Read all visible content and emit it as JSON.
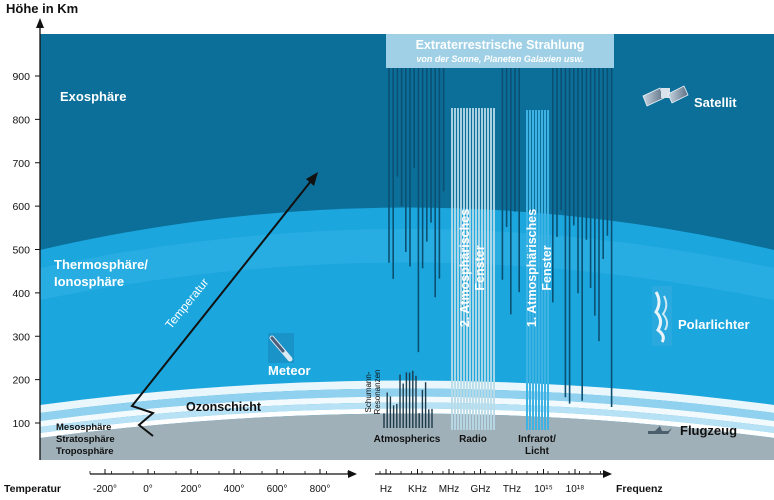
{
  "y_axis": {
    "title": "Höhe in Km",
    "ticks": [
      "100",
      "200",
      "300",
      "400",
      "500",
      "600",
      "700",
      "800",
      "900"
    ]
  },
  "layers": {
    "exosphere": "Exosphäre",
    "thermosphere_line1": "Thermosphäre/",
    "thermosphere_line2": "Ionosphäre",
    "ozone": "Ozonschicht",
    "mesosphere": "Mesosphäre",
    "stratosphere": "Stratosphäre",
    "troposphere": "Troposphäre"
  },
  "objects": {
    "meteor": "Meteor",
    "satellite": "Satellit",
    "aurora": "Polarlichter",
    "airplane": "Flugzeug"
  },
  "temperature_arrow_label": "Temperatur",
  "radiation": {
    "title": "Extraterrestrische Strahlung",
    "subtitle": "von der Sonne, Planeten Galaxien usw."
  },
  "windows": {
    "radio_line1": "2. Atmosphärisches",
    "radio_line2": "Fenster",
    "optical_line1": "1. Atmosphärisches",
    "optical_line2": "Fenster"
  },
  "schumann_line1": "Schumann-",
  "schumann_line2": "Resonanzen",
  "bands": {
    "atmospherics": "Atmospherics",
    "radio": "Radio",
    "infrared_line1": "Infrarot/",
    "infrared_line2": "Licht"
  },
  "temp_axis": {
    "title": "Temperatur",
    "ticks": [
      "-200°",
      "0°",
      "200°",
      "400°",
      "600°",
      "800°"
    ]
  },
  "freq_axis": {
    "title": "Frequenz",
    "ticks": [
      "Hz",
      "KHz",
      "MHz",
      "GHz",
      "THz",
      "10¹⁵",
      "10¹⁸"
    ]
  },
  "colors": {
    "exosphere": "#0c6f99",
    "thermosphere": "#1ba6de",
    "ozone_band": "#8fd1ef",
    "lower_layers": "#9fb0b8",
    "radiation_lines": "#0b4f72",
    "window_lines": "#9ec8da",
    "axis": "#111111"
  }
}
